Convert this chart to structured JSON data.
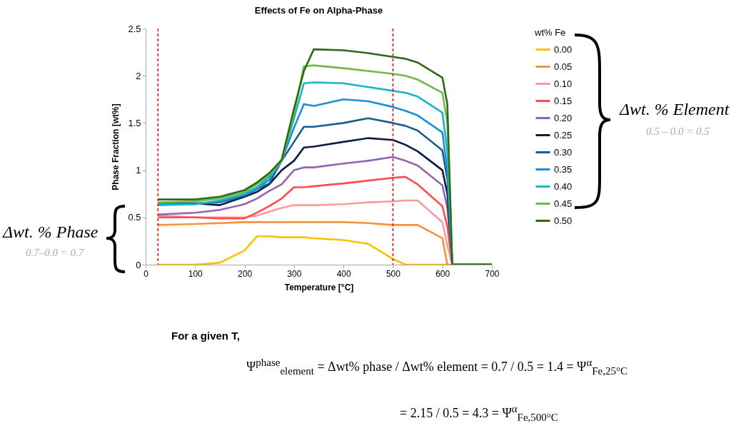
{
  "chart_data": {
    "type": "line",
    "title": "Effects of Fe on Alpha-Phase",
    "xlabel": "Temperature [°C]",
    "ylabel": "Phase Fraction [wt%]",
    "legend_title": "wt% Fe",
    "legend": "right",
    "grid": false,
    "line_style": "solid",
    "x": [
      25,
      100,
      150,
      200,
      225,
      250,
      275,
      300,
      320,
      340,
      400,
      450,
      500,
      525,
      550,
      600,
      610,
      620,
      700
    ],
    "xlim": [
      0,
      700
    ],
    "xticks": [
      0,
      100,
      200,
      300,
      400,
      500,
      600,
      700
    ],
    "ylim": [
      0,
      2.5
    ],
    "yticks": [
      0,
      0.5,
      1,
      1.5,
      2,
      2.5
    ],
    "series": [
      {
        "name": "0.00",
        "color": "#ffc000",
        "values": [
          0,
          0,
          0.02,
          0.15,
          0.3,
          0.3,
          0.29,
          0.29,
          0.29,
          0.28,
          0.26,
          0.22,
          0.06,
          0,
          0,
          0,
          0,
          0,
          0
        ]
      },
      {
        "name": "0.05",
        "color": "#f7923a",
        "values": [
          0.42,
          0.43,
          0.44,
          0.45,
          0.45,
          0.45,
          0.45,
          0.45,
          0.45,
          0.45,
          0.45,
          0.44,
          0.42,
          0.42,
          0.42,
          0.28,
          0,
          0,
          0
        ]
      },
      {
        "name": "0.10",
        "color": "#ff9a9a",
        "values": [
          0.52,
          0.5,
          0.5,
          0.5,
          0.52,
          0.56,
          0.6,
          0.63,
          0.63,
          0.63,
          0.64,
          0.66,
          0.67,
          0.68,
          0.68,
          0.45,
          0.2,
          0,
          0
        ]
      },
      {
        "name": "0.15",
        "color": "#ff4d4d",
        "values": [
          0.5,
          0.5,
          0.49,
          0.49,
          0.55,
          0.62,
          0.7,
          0.82,
          0.82,
          0.83,
          0.86,
          0.89,
          0.92,
          0.93,
          0.85,
          0.62,
          0.4,
          0,
          0
        ]
      },
      {
        "name": "0.20",
        "color": "#9464b0",
        "values": [
          0.53,
          0.55,
          0.58,
          0.64,
          0.7,
          0.78,
          0.85,
          1.0,
          1.03,
          1.03,
          1.07,
          1.1,
          1.14,
          1.1,
          1.05,
          0.84,
          0.6,
          0,
          0
        ]
      },
      {
        "name": "0.25",
        "color": "#0c1e40",
        "values": [
          0.65,
          0.65,
          0.63,
          0.72,
          0.77,
          0.85,
          1.0,
          1.1,
          1.24,
          1.25,
          1.3,
          1.34,
          1.32,
          1.27,
          1.2,
          1.0,
          0.75,
          0,
          0
        ]
      },
      {
        "name": "0.30",
        "color": "#1c5d8e",
        "values": [
          0.65,
          0.65,
          0.66,
          0.73,
          0.8,
          0.86,
          1.1,
          1.3,
          1.46,
          1.46,
          1.5,
          1.55,
          1.5,
          1.47,
          1.42,
          1.21,
          0.9,
          0,
          0
        ]
      },
      {
        "name": "0.35",
        "color": "#1a8fdb",
        "values": [
          0.64,
          0.64,
          0.67,
          0.74,
          0.8,
          0.9,
          1.1,
          1.45,
          1.7,
          1.68,
          1.75,
          1.73,
          1.67,
          1.63,
          1.58,
          1.4,
          1.0,
          0,
          0
        ]
      },
      {
        "name": "0.40",
        "color": "#18b4c8",
        "values": [
          0.63,
          0.64,
          0.68,
          0.75,
          0.82,
          0.93,
          1.1,
          1.55,
          1.92,
          1.93,
          1.92,
          1.88,
          1.84,
          1.82,
          1.78,
          1.61,
          1.2,
          0,
          0
        ]
      },
      {
        "name": "0.45",
        "color": "#72b94a",
        "values": [
          0.66,
          0.67,
          0.7,
          0.77,
          0.85,
          0.95,
          1.1,
          1.6,
          2.1,
          2.11,
          2.08,
          2.05,
          2.02,
          2.0,
          1.96,
          1.82,
          1.5,
          0,
          0
        ]
      },
      {
        "name": "0.50",
        "color": "#2d6a18",
        "values": [
          0.69,
          0.69,
          0.72,
          0.79,
          0.87,
          0.97,
          1.11,
          1.65,
          2.05,
          2.28,
          2.27,
          2.24,
          2.2,
          2.18,
          2.14,
          1.98,
          1.7,
          0,
          0
        ]
      }
    ],
    "ref_lines": [
      {
        "axis": "x",
        "value": 25,
        "color": "#ff0000",
        "line_style": "dashed"
      },
      {
        "axis": "x",
        "value": 500,
        "color": "#ff0000",
        "line_style": "dashed"
      }
    ],
    "annotations": [
      "Δwt. % Element",
      "0.5 – 0.0 = 0.5",
      "Δwt. % Phase",
      "0.7–0.0 = 0.7",
      "For a given T,",
      "Ψ$^{phase}$$_{element}$ = Δwt% phase / Δwt% element = 0.7 / 0.5 = 1.4 = Ψ$^{α}$$_{Fe,25°C}$",
      "= 2.15 / 0.5 = 4.3 = Ψ$^{α}$$_{Fe,500°C}$"
    ]
  }
}
